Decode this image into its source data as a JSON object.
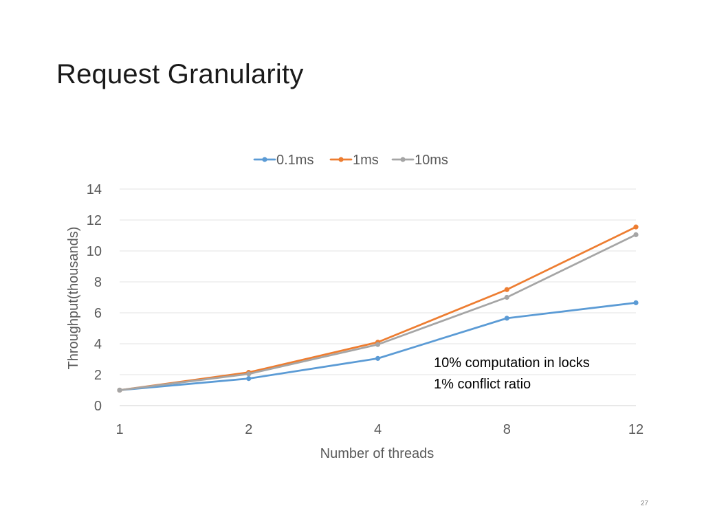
{
  "slide": {
    "title": "Request Granularity",
    "page_number": "27"
  },
  "chart_data": {
    "type": "line",
    "categories": [
      "1",
      "2",
      "4",
      "8",
      "12"
    ],
    "series": [
      {
        "name": "0.1ms",
        "color": "#5b9bd5",
        "values": [
          1.0,
          1.75,
          3.05,
          5.65,
          6.65
        ]
      },
      {
        "name": "1ms",
        "color": "#ed7d31",
        "values": [
          1.0,
          2.15,
          4.1,
          7.5,
          11.55
        ]
      },
      {
        "name": "10ms",
        "color": "#a5a5a5",
        "values": [
          1.0,
          2.05,
          3.95,
          7.0,
          11.05
        ]
      }
    ],
    "xlabel": "Number of threads",
    "ylabel": "Throughput(thousands)",
    "ylim": [
      0,
      14
    ],
    "yticks": [
      0,
      2,
      4,
      6,
      8,
      10,
      12,
      14
    ],
    "grid": true,
    "legend": "top",
    "annotation": [
      "10% computation in locks",
      "1% conflict ratio"
    ]
  }
}
